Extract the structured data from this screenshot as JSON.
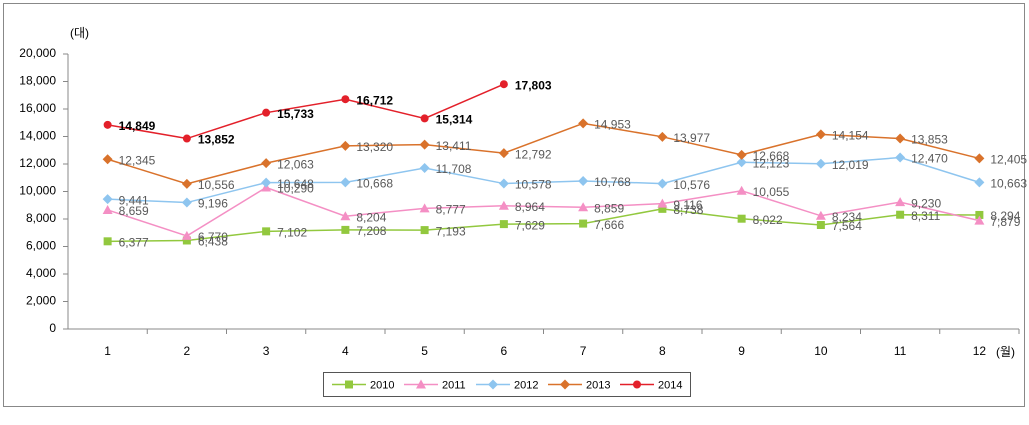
{
  "chart_data": {
    "type": "line",
    "y_unit": "(대)",
    "x_unit": "(월)",
    "categories": [
      "1",
      "2",
      "3",
      "4",
      "5",
      "6",
      "7",
      "8",
      "9",
      "10",
      "11",
      "12"
    ],
    "ylim": [
      0,
      20000
    ],
    "yticks": [
      0,
      {
        "value": 2000,
        "label": "2,000"
      },
      {
        "value": 4000,
        "label": "4,000"
      },
      {
        "value": 6000,
        "label": "6,000"
      },
      {
        "value": 8000,
        "label": "8,000"
      },
      {
        "value": 10000,
        "label": "10,000"
      },
      {
        "value": 12000,
        "label": "12,000"
      },
      {
        "value": 14000,
        "label": "14,000"
      },
      {
        "value": 16000,
        "label": "16,000"
      },
      {
        "value": 18000,
        "label": "18,000"
      },
      {
        "value": 20000,
        "label": "20,000"
      }
    ],
    "legend": "bottom",
    "series": [
      {
        "name": "2010",
        "color": "#92c83e",
        "marker": "square",
        "values": [
          6377,
          6438,
          7102,
          7208,
          7193,
          7629,
          7666,
          8738,
          8022,
          7564,
          8311,
          8294
        ],
        "value_labels": [
          "6,377",
          "6,438",
          "7,102",
          "7,208",
          "7,193",
          "7,629",
          "7,666",
          "8,738",
          "8,022",
          "7,564",
          "8,311",
          "8,294"
        ]
      },
      {
        "name": "2011",
        "color": "#f48fc4",
        "marker": "triangle",
        "values": [
          8659,
          6770,
          10290,
          8204,
          8777,
          8964,
          8859,
          9116,
          10055,
          8234,
          9230,
          7879
        ],
        "value_labels": [
          "8,659",
          "6,770",
          "10,290",
          "8,204",
          "8,777",
          "8,964",
          "8,859",
          "9,116",
          "10,055",
          "8,234",
          "9,230",
          "7,879"
        ]
      },
      {
        "name": "2012",
        "color": "#8ec5ef",
        "marker": "diamond",
        "values": [
          9441,
          9196,
          10648,
          10668,
          11708,
          10578,
          10768,
          10576,
          12123,
          12019,
          12470,
          10663
        ],
        "value_labels": [
          "9,441",
          "9,196",
          "10,648",
          "10,668",
          "11,708",
          "10,578",
          "10,768",
          "10,576",
          "12,123",
          "12,019",
          "12,470",
          "10,663"
        ]
      },
      {
        "name": "2013",
        "color": "#d9722b",
        "marker": "diamond",
        "values": [
          12345,
          10556,
          12063,
          13320,
          13411,
          12792,
          14953,
          13977,
          12668,
          14154,
          13853,
          12405
        ],
        "value_labels": [
          "12,345",
          "10,556",
          "12,063",
          "13,320",
          "13,411",
          "12,792",
          "14,953",
          "13,977",
          "12,668",
          "14,154",
          "13,853",
          "12,405"
        ]
      },
      {
        "name": "2014",
        "color": "#e3202a",
        "marker": "circle",
        "values": [
          14849,
          13852,
          15733,
          16712,
          15314,
          17803,
          null,
          null,
          null,
          null,
          null,
          null
        ],
        "value_labels": [
          "14,849",
          "13,852",
          "15,733",
          "16,712",
          "15,314",
          "17,803",
          null,
          null,
          null,
          null,
          null,
          null
        ]
      }
    ]
  }
}
